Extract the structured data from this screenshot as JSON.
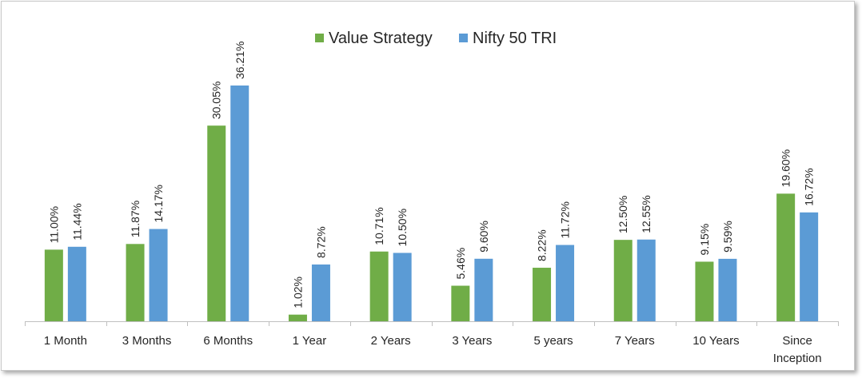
{
  "chart_data": {
    "type": "bar",
    "title": "",
    "xlabel": "",
    "ylabel": "",
    "ylim": [
      0,
      40
    ],
    "grid": false,
    "legend_position": "top-center",
    "categories": [
      "1 Month",
      "3 Months",
      "6 Months",
      "1 Year",
      "2 Years",
      "3 Years",
      "5 years",
      "7 Years",
      "10 Years",
      "Since Inception"
    ],
    "series": [
      {
        "name": "Value Strategy",
        "color": "#70ad47",
        "values": [
          11.0,
          11.87,
          30.05,
          1.02,
          10.71,
          5.46,
          8.22,
          12.5,
          9.15,
          19.6
        ],
        "labels": [
          "11.00%",
          "11.87%",
          "30.05%",
          "1.02%",
          "10.71%",
          "5.46%",
          "8.22%",
          "12.50%",
          "9.15%",
          "19.60%"
        ]
      },
      {
        "name": "Nifty 50 TRI",
        "color": "#5b9bd5",
        "values": [
          11.44,
          14.17,
          36.21,
          8.72,
          10.5,
          9.6,
          11.72,
          12.55,
          9.59,
          16.72
        ],
        "labels": [
          "11.44%",
          "14.17%",
          "36.21%",
          "8.72%",
          "10.50%",
          "9.60%",
          "11.72%",
          "12.55%",
          "9.59%",
          "16.72%"
        ]
      }
    ]
  }
}
